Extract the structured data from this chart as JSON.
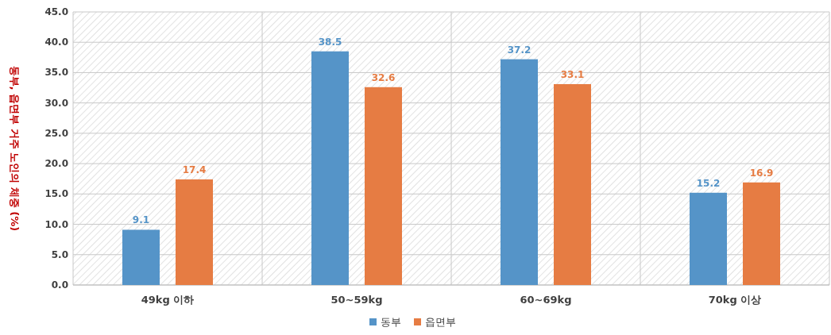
{
  "chart_data": {
    "type": "bar",
    "ylabel": "동부, 읍면부 거주 노인의 체중 (%)",
    "categories": [
      "49kg 이하",
      "50~59kg",
      "60~69kg",
      "70kg 이상"
    ],
    "series": [
      {
        "name": "동부",
        "color": "#5594c8",
        "values": [
          9.1,
          38.5,
          37.2,
          15.2
        ]
      },
      {
        "name": "읍면부",
        "color": "#e67c43",
        "values": [
          17.4,
          32.6,
          33.1,
          16.9
        ]
      }
    ],
    "ylim": [
      0,
      45
    ],
    "yticks": [
      {
        "value": 0,
        "label": "0.0"
      },
      {
        "value": 5,
        "label": "5.0"
      },
      {
        "value": 10,
        "label": "10.0"
      },
      {
        "value": 15,
        "label": "15.0"
      },
      {
        "value": 20,
        "label": "20.0"
      },
      {
        "value": 25,
        "label": "25.0"
      },
      {
        "value": 30,
        "label": "30.0"
      },
      {
        "value": 35,
        "label": "35.0"
      },
      {
        "value": 40,
        "label": "40.0"
      },
      {
        "value": 45,
        "label": "45.0"
      }
    ],
    "data_labels": true,
    "grid": true,
    "legend": "bottom"
  }
}
